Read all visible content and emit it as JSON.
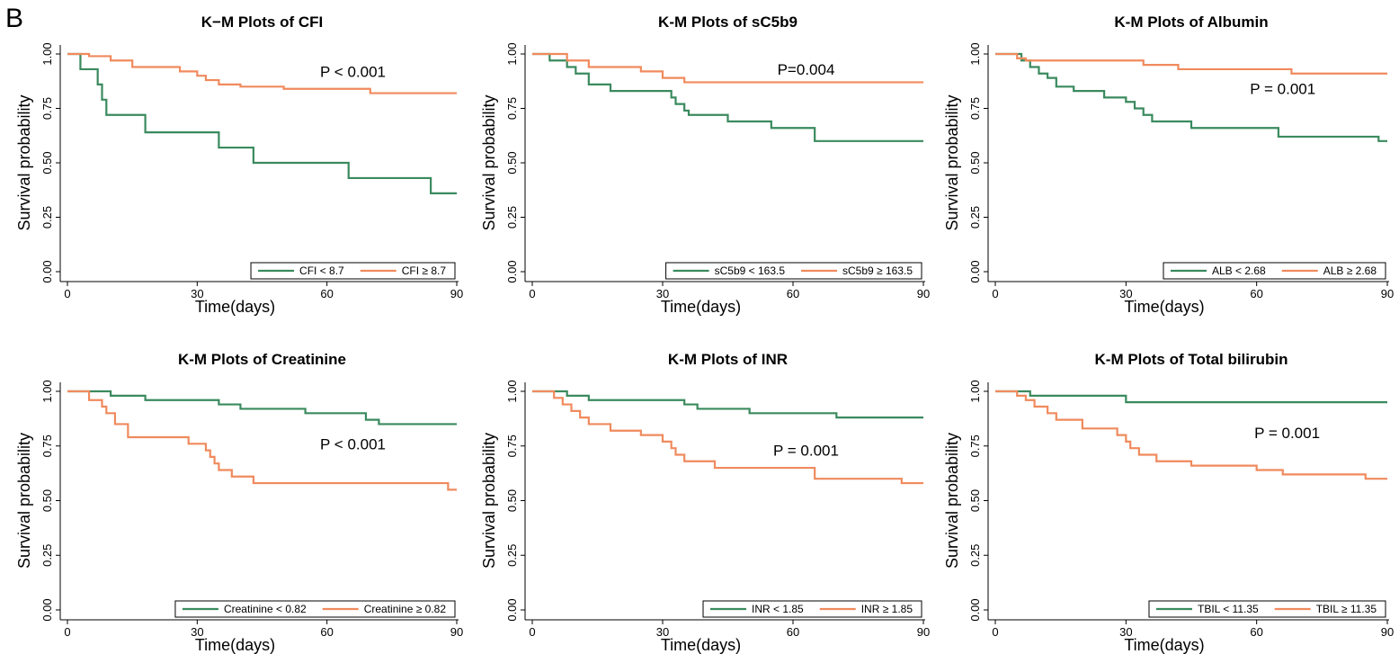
{
  "panel_label": "B",
  "chart_data": [
    {
      "type": "line",
      "title": "K−M Plots of CFI",
      "xlabel": "Time(days)",
      "ylabel": "Survival probability",
      "annotation": "P < 0.001",
      "xlim": [
        0,
        90
      ],
      "xticks": [
        0,
        30,
        60,
        90
      ],
      "ylim": [
        0,
        1
      ],
      "yticks": [
        {
          "value": 0,
          "label": "0.00"
        },
        {
          "value": 0.25,
          "label": "0.25"
        },
        {
          "value": 0.5,
          "label": "0.50"
        },
        {
          "value": 0.75,
          "label": "0.75"
        },
        {
          "value": 1,
          "label": "1.00"
        }
      ],
      "series": [
        {
          "name": "CFI < 8.7",
          "color": "#3a8a5e",
          "x": [
            0,
            3,
            7,
            8,
            9,
            18,
            35,
            43,
            65,
            84,
            90
          ],
          "values": [
            1,
            0.93,
            0.86,
            0.79,
            0.72,
            0.64,
            0.57,
            0.5,
            0.43,
            0.36,
            0.36
          ]
        },
        {
          "name": "CFI ≥ 8.7",
          "color": "#f08a5d",
          "x": [
            0,
            5,
            10,
            15,
            26,
            30,
            32,
            35,
            40,
            50,
            70,
            90
          ],
          "values": [
            1,
            0.99,
            0.97,
            0.94,
            0.92,
            0.9,
            0.88,
            0.86,
            0.85,
            0.84,
            0.82,
            0.82
          ]
        }
      ]
    },
    {
      "type": "line",
      "title": "K-M Plots of sC5b9",
      "xlabel": "Time(days)",
      "ylabel": "Survival probability",
      "annotation": "P=0.004",
      "xlim": [
        0,
        90
      ],
      "xticks": [
        0,
        30,
        60,
        90
      ],
      "ylim": [
        0,
        1
      ],
      "yticks": [
        {
          "value": 0,
          "label": "0.00"
        },
        {
          "value": 0.25,
          "label": "0.25"
        },
        {
          "value": 0.5,
          "label": "0.50"
        },
        {
          "value": 0.75,
          "label": "0.75"
        },
        {
          "value": 1,
          "label": "1.00"
        }
      ],
      "series": [
        {
          "name": "sC5b9 < 163.5",
          "color": "#3a8a5e",
          "x": [
            0,
            4,
            8,
            10,
            13,
            18,
            32,
            33,
            35,
            36,
            45,
            55,
            65,
            90
          ],
          "values": [
            1,
            0.97,
            0.94,
            0.91,
            0.86,
            0.83,
            0.8,
            0.77,
            0.74,
            0.72,
            0.69,
            0.66,
            0.6,
            0.6
          ]
        },
        {
          "name": "sC5b9 ≥ 163.5",
          "color": "#f08a5d",
          "x": [
            0,
            8,
            13,
            25,
            30,
            35,
            90
          ],
          "values": [
            1,
            0.97,
            0.94,
            0.92,
            0.89,
            0.87,
            0.87
          ]
        }
      ]
    },
    {
      "type": "line",
      "title": "K-M Plots of Albumin",
      "xlabel": "Time(days)",
      "ylabel": "Survival probability",
      "annotation": "P = 0.001",
      "xlim": [
        0,
        90
      ],
      "xticks": [
        0,
        30,
        60,
        90
      ],
      "ylim": [
        0,
        1
      ],
      "yticks": [
        {
          "value": 0,
          "label": "0.00"
        },
        {
          "value": 0.25,
          "label": "0.25"
        },
        {
          "value": 0.5,
          "label": "0.50"
        },
        {
          "value": 0.75,
          "label": "0.75"
        },
        {
          "value": 1,
          "label": "1.00"
        }
      ],
      "series": [
        {
          "name": "ALB < 2.68",
          "color": "#3a8a5e",
          "x": [
            0,
            6,
            8,
            10,
            12,
            14,
            18,
            25,
            30,
            32,
            34,
            36,
            45,
            65,
            88,
            90
          ],
          "values": [
            1,
            0.97,
            0.94,
            0.91,
            0.89,
            0.85,
            0.83,
            0.8,
            0.78,
            0.75,
            0.72,
            0.69,
            0.66,
            0.62,
            0.6,
            0.6
          ]
        },
        {
          "name": "ALB ≥ 2.68",
          "color": "#f08a5d",
          "x": [
            0,
            5,
            7,
            34,
            42,
            68,
            90
          ],
          "values": [
            1,
            0.98,
            0.97,
            0.95,
            0.93,
            0.91,
            0.91
          ]
        }
      ]
    },
    {
      "type": "line",
      "title": "K-M Plots of Creatinine",
      "xlabel": "Time(days)",
      "ylabel": "Survival probability",
      "annotation": "P < 0.001",
      "xlim": [
        0,
        90
      ],
      "xticks": [
        0,
        30,
        60,
        90
      ],
      "ylim": [
        0,
        1
      ],
      "yticks": [
        {
          "value": 0,
          "label": "0.00"
        },
        {
          "value": 0.25,
          "label": "0.25"
        },
        {
          "value": 0.5,
          "label": "0.50"
        },
        {
          "value": 0.75,
          "label": "0.75"
        },
        {
          "value": 1,
          "label": "1.00"
        }
      ],
      "series": [
        {
          "name": "Creatinine < 0.82",
          "color": "#3a8a5e",
          "x": [
            0,
            10,
            18,
            35,
            40,
            55,
            69,
            72,
            90
          ],
          "values": [
            1,
            0.98,
            0.96,
            0.94,
            0.92,
            0.9,
            0.87,
            0.85,
            0.85
          ]
        },
        {
          "name": "Creatinine ≥ 0.82",
          "color": "#f08a5d",
          "x": [
            0,
            5,
            8,
            9,
            11,
            14,
            28,
            32,
            33,
            34,
            35,
            38,
            43,
            88,
            90
          ],
          "values": [
            1,
            0.96,
            0.93,
            0.9,
            0.85,
            0.79,
            0.76,
            0.73,
            0.7,
            0.67,
            0.64,
            0.61,
            0.58,
            0.55,
            0.55
          ]
        }
      ]
    },
    {
      "type": "line",
      "title": "K-M Plots of INR",
      "xlabel": "Time(days)",
      "ylabel": "Survival probability",
      "annotation": "P = 0.001",
      "xlim": [
        0,
        90
      ],
      "xticks": [
        0,
        30,
        60,
        90
      ],
      "ylim": [
        0,
        1
      ],
      "yticks": [
        {
          "value": 0,
          "label": "0.00"
        },
        {
          "value": 0.25,
          "label": "0.25"
        },
        {
          "value": 0.5,
          "label": "0.50"
        },
        {
          "value": 0.75,
          "label": "0.75"
        },
        {
          "value": 1,
          "label": "1.00"
        }
      ],
      "series": [
        {
          "name": "INR < 1.85",
          "color": "#3a8a5e",
          "x": [
            0,
            8,
            13,
            35,
            38,
            50,
            70,
            90
          ],
          "values": [
            1,
            0.98,
            0.96,
            0.94,
            0.92,
            0.9,
            0.88,
            0.88
          ]
        },
        {
          "name": "INR ≥ 1.85",
          "color": "#f08a5d",
          "x": [
            0,
            5,
            7,
            9,
            11,
            13,
            18,
            25,
            30,
            32,
            33,
            35,
            42,
            65,
            85,
            90
          ],
          "values": [
            1,
            0.97,
            0.94,
            0.91,
            0.88,
            0.85,
            0.82,
            0.8,
            0.77,
            0.74,
            0.71,
            0.68,
            0.65,
            0.6,
            0.58,
            0.58
          ]
        }
      ]
    },
    {
      "type": "line",
      "title": "K-M Plots of Total bilirubin",
      "xlabel": "Time(days)",
      "ylabel": "Survival probability",
      "annotation": "P = 0.001",
      "xlim": [
        0,
        90
      ],
      "xticks": [
        0,
        30,
        60,
        90
      ],
      "ylim": [
        0,
        1
      ],
      "yticks": [
        {
          "value": 0,
          "label": "0.00"
        },
        {
          "value": 0.25,
          "label": "0.25"
        },
        {
          "value": 0.5,
          "label": "0.50"
        },
        {
          "value": 0.75,
          "label": "0.75"
        },
        {
          "value": 1,
          "label": "1.00"
        }
      ],
      "series": [
        {
          "name": "TBIL < 11.35",
          "color": "#3a8a5e",
          "x": [
            0,
            8,
            30,
            90
          ],
          "values": [
            1,
            0.98,
            0.95,
            0.95
          ]
        },
        {
          "name": "TBIL ≥ 11.35",
          "color": "#f08a5d",
          "x": [
            0,
            5,
            7,
            9,
            12,
            14,
            20,
            28,
            30,
            31,
            33,
            37,
            45,
            60,
            66,
            85,
            90
          ],
          "values": [
            1,
            0.98,
            0.96,
            0.93,
            0.9,
            0.87,
            0.83,
            0.8,
            0.77,
            0.74,
            0.71,
            0.68,
            0.66,
            0.64,
            0.62,
            0.6,
            0.6
          ]
        }
      ]
    }
  ]
}
